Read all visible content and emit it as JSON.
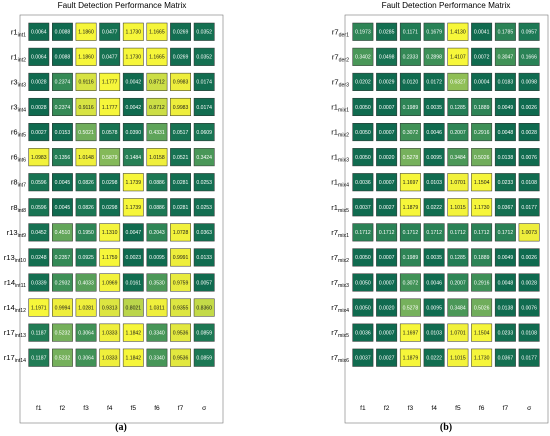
{
  "chart_data": [
    {
      "type": "heatmap",
      "title": "Fault Detection Performance Matrix",
      "caption": "(a)",
      "columns": [
        "f1",
        "f2",
        "f3",
        "f4",
        "f5",
        "f6",
        "f7",
        "σ"
      ],
      "rows": [
        {
          "label": "r1",
          "sub": "int1"
        },
        {
          "label": "r1",
          "sub": "int2"
        },
        {
          "label": "r3",
          "sub": "int3"
        },
        {
          "label": "r3",
          "sub": "int4"
        },
        {
          "label": "r6",
          "sub": "int5"
        },
        {
          "label": "r6",
          "sub": "int6"
        },
        {
          "label": "r8",
          "sub": "int7"
        },
        {
          "label": "r8",
          "sub": "int8"
        },
        {
          "label": "r13",
          "sub": "int9"
        },
        {
          "label": "r13",
          "sub": "int10"
        },
        {
          "label": "r14",
          "sub": "int11"
        },
        {
          "label": "r14",
          "sub": "int12"
        },
        {
          "label": "r17",
          "sub": "int13"
        },
        {
          "label": "r17",
          "sub": "int14"
        }
      ],
      "values": [
        [
          "0.0064",
          "0.0088",
          "1.1860",
          "0.0477",
          "1.1730",
          "1.1665",
          "0.0269",
          "0.0352"
        ],
        [
          "0.0064",
          "0.0088",
          "1.1860",
          "0.0477",
          "1.1730",
          "1.1665",
          "0.0269",
          "0.0352"
        ],
        [
          "0.0028",
          "0.2374",
          "0.9116",
          "1.1777",
          "0.0042",
          "0.8712",
          "0.9983",
          "0.0174"
        ],
        [
          "0.0028",
          "0.2374",
          "0.9116",
          "1.1777",
          "0.0042",
          "0.8712",
          "0.9983",
          "0.0174"
        ],
        [
          "0.0027",
          "0.0153",
          "0.5021",
          "0.0578",
          "0.0390",
          "0.4331",
          "0.0517",
          "0.0609"
        ],
        [
          "1.0983",
          "0.1356",
          "1.0148",
          "0.5879",
          "0.1484",
          "1.0158",
          "0.0521",
          "0.3424"
        ],
        [
          "0.0596",
          "0.0045",
          "0.0826",
          "0.0298",
          "1.1739",
          "0.0886",
          "0.0281",
          "0.0253"
        ],
        [
          "0.0596",
          "0.0045",
          "0.0826",
          "0.0298",
          "1.1739",
          "0.0886",
          "0.0281",
          "0.0253"
        ],
        [
          "0.0452",
          "0.4510",
          "0.1950",
          "1.1310",
          "0.0047",
          "0.2043",
          "1.0728",
          "0.0363"
        ],
        [
          "0.0248",
          "0.2357",
          "0.0925",
          "1.1759",
          "0.0023",
          "0.0095",
          "0.9991",
          "0.0133"
        ],
        [
          "0.0339",
          "0.2932",
          "0.4033",
          "1.0969",
          "0.0161",
          "0.3530",
          "0.9759",
          "0.0057"
        ],
        [
          "1.1971",
          "0.9994",
          "1.0281",
          "0.9313",
          "0.8021",
          "1.0311",
          "0.9355",
          "0.8360"
        ],
        [
          "0.1187",
          "0.5232",
          "0.3064",
          "1.0333",
          "1.1842",
          "0.3340",
          "0.9536",
          "0.0859"
        ],
        [
          "0.1187",
          "0.5232",
          "0.3064",
          "1.0333",
          "1.1842",
          "0.3340",
          "0.9536",
          "0.0859"
        ]
      ]
    },
    {
      "type": "heatmap",
      "title": "Fault Detection Performance Matrix",
      "caption": "(b)",
      "columns": [
        "f1",
        "f2",
        "f3",
        "f4",
        "f5",
        "f6",
        "f7",
        "σ"
      ],
      "rows": [
        {
          "label": "r7",
          "sub": "der1"
        },
        {
          "label": "r7",
          "sub": "der2"
        },
        {
          "label": "r7",
          "sub": "der3"
        },
        {
          "label": "r1",
          "sub": "mix1"
        },
        {
          "label": "r1",
          "sub": "mix2"
        },
        {
          "label": "r1",
          "sub": "mix3"
        },
        {
          "label": "r1",
          "sub": "mix4"
        },
        {
          "label": "r1",
          "sub": "mix5"
        },
        {
          "label": "r7",
          "sub": "mix1"
        },
        {
          "label": "r7",
          "sub": "mix2"
        },
        {
          "label": "r7",
          "sub": "mix3"
        },
        {
          "label": "r7",
          "sub": "mix4"
        },
        {
          "label": "r7",
          "sub": "mix5"
        },
        {
          "label": "r7",
          "sub": "mix6"
        }
      ],
      "values": [
        [
          "0.1973",
          "0.0285",
          "0.1171",
          "0.1679",
          "1.4130",
          "0.0041",
          "0.1785",
          "0.0957"
        ],
        [
          "0.3402",
          "0.0498",
          "0.2333",
          "0.2898",
          "1.4107",
          "0.0072",
          "0.3047",
          "0.1666"
        ],
        [
          "0.0202",
          "0.0029",
          "0.0120",
          "0.0172",
          "0.6327",
          "0.0004",
          "0.0183",
          "0.0098"
        ],
        [
          "0.0050",
          "0.0007",
          "0.1989",
          "0.0035",
          "0.1285",
          "0.1889",
          "0.0049",
          "0.0026"
        ],
        [
          "0.0050",
          "0.0007",
          "0.3072",
          "0.0046",
          "0.2007",
          "0.2916",
          "0.0048",
          "0.0028"
        ],
        [
          "0.0050",
          "0.0020",
          "0.5278",
          "0.0095",
          "0.3484",
          "0.5026",
          "0.0138",
          "0.0076"
        ],
        [
          "0.0036",
          "0.0007",
          "1.1697",
          "0.0103",
          "1.0701",
          "1.1504",
          "0.0233",
          "0.0108"
        ],
        [
          "0.0037",
          "0.0027",
          "1.1879",
          "0.0222",
          "1.1015",
          "1.1730",
          "0.0367",
          "0.0177"
        ],
        [
          "0.1712",
          "0.1712",
          "0.1712",
          "0.1712",
          "0.1712",
          "0.1712",
          "0.1712",
          "1.0073"
        ],
        [
          "0.0050",
          "0.0007",
          "0.1989",
          "0.0035",
          "0.1285",
          "0.1889",
          "0.0049",
          "0.0026"
        ],
        [
          "0.0050",
          "0.0007",
          "0.3072",
          "0.0046",
          "0.2007",
          "0.2916",
          "0.0048",
          "0.0028"
        ],
        [
          "0.0050",
          "0.0020",
          "0.5278",
          "0.0095",
          "0.3484",
          "0.5026",
          "0.0138",
          "0.0076"
        ],
        [
          "0.0036",
          "0.0007",
          "1.1697",
          "0.0103",
          "1.0701",
          "1.1504",
          "0.0233",
          "0.0108"
        ],
        [
          "0.0037",
          "0.0027",
          "1.1879",
          "0.0222",
          "1.1015",
          "1.1730",
          "0.0367",
          "0.0177"
        ]
      ],
      "color_scale": {
        "low": "#0e6b4e",
        "mid": "#5fa35c",
        "high": "#f4f43c"
      }
    }
  ]
}
